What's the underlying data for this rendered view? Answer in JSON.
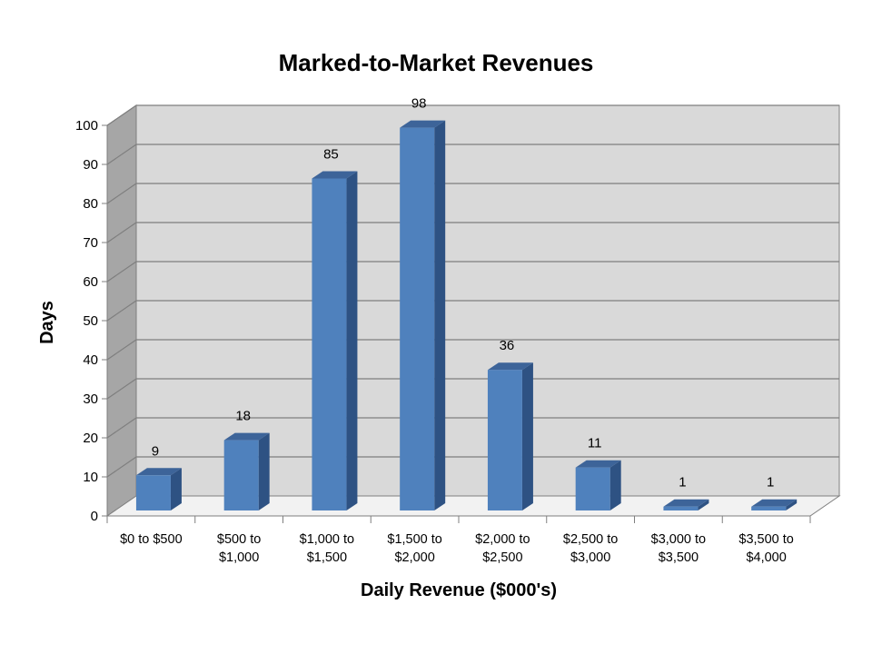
{
  "chart_data": {
    "type": "bar",
    "title": "Marked-to-Market Revenues",
    "xlabel": "Daily Revenue ($000's)",
    "ylabel": "Days",
    "categories": [
      [
        "$0 to $500"
      ],
      [
        "$500 to",
        "$1,000"
      ],
      [
        "$1,000 to",
        "$1,500"
      ],
      [
        "$1,500 to",
        "$2,000"
      ],
      [
        "$2,000 to",
        "$2,500"
      ],
      [
        "$2,500 to",
        "$3,000"
      ],
      [
        "$3,000 to",
        "$3,500"
      ],
      [
        "$3,500 to",
        "$4,000"
      ]
    ],
    "values": [
      9,
      18,
      85,
      98,
      36,
      11,
      1,
      1
    ],
    "ylim": [
      0,
      100
    ],
    "yticks": [
      0,
      10,
      20,
      30,
      40,
      50,
      60,
      70,
      80,
      90,
      100
    ],
    "grid": true,
    "legend": "none",
    "colors": {
      "bar_front": "#4F81BD",
      "bar_side": "#2E5283",
      "bar_top": "#3D6499",
      "back_wall": "#D9D9D9",
      "side_wall": "#A6A6A6",
      "floor": "#F2F2F2",
      "grid": "#7F7F7F"
    }
  }
}
